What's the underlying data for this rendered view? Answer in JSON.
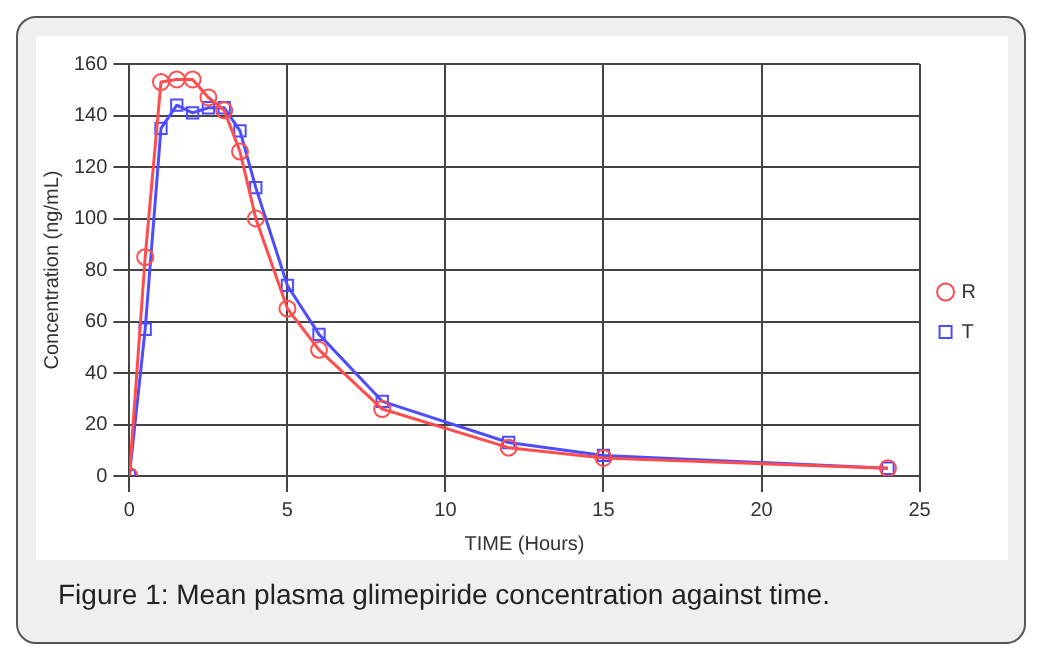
{
  "chart_data": {
    "type": "line",
    "title": "Figure 1: Mean plasma glimepiride concentration against time.",
    "xlabel": "TIME (Hours)",
    "ylabel": "Concentration (ng/mL)",
    "x": [
      0,
      0.5,
      1,
      1.5,
      2,
      2.5,
      3,
      3.5,
      4,
      5,
      6,
      8,
      12,
      15,
      24
    ],
    "series": [
      {
        "name": "R",
        "color": "#ff4d4d",
        "marker": "circle",
        "values": [
          0,
          85,
          153,
          154,
          154,
          147,
          142,
          126,
          100,
          65,
          49,
          26,
          11,
          7,
          3
        ]
      },
      {
        "name": "T",
        "color": "#4d4dff",
        "marker": "square",
        "values": [
          0,
          57,
          135,
          144,
          141,
          143,
          143,
          134,
          112,
          74,
          55,
          29,
          13,
          8,
          3
        ]
      }
    ],
    "xlim": [
      0,
      25
    ],
    "xticks": [
      0,
      5,
      10,
      15,
      20,
      25
    ],
    "ylim": [
      0,
      160
    ],
    "yticks": [
      0,
      20,
      40,
      60,
      80,
      100,
      120,
      140,
      160
    ],
    "grid": true,
    "legend": "right"
  }
}
